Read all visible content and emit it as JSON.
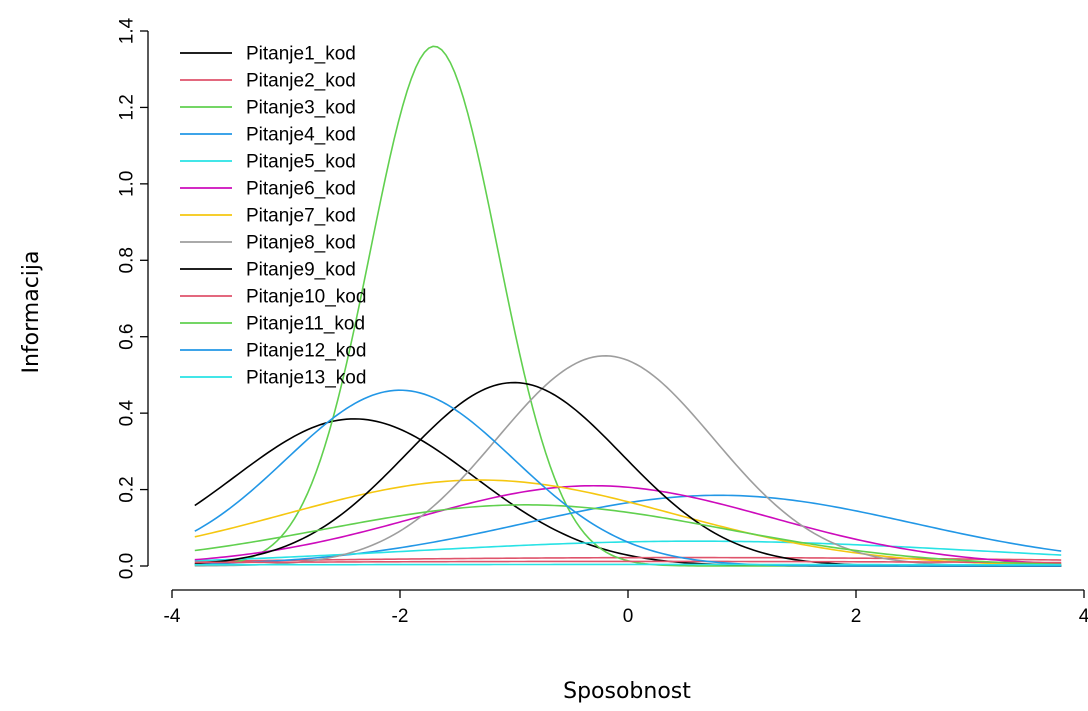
{
  "chart_data": {
    "type": "line",
    "title": "",
    "xlabel": "Sposobnost",
    "ylabel": "Informacija",
    "xlim": [
      -4,
      4
    ],
    "ylim": [
      0,
      1.4
    ],
    "xticks": [
      "-4",
      "-2",
      "0",
      "2",
      "4"
    ],
    "yticks": [
      "0.0",
      "0.2",
      "0.4",
      "0.6",
      "0.8",
      "1.0",
      "1.2",
      "1.4"
    ],
    "x_range": [
      -3.8,
      3.8
    ],
    "legend_position": "top-left",
    "grid": false,
    "series": [
      {
        "name": "Pitanje1_kod",
        "color": "#000000",
        "peak_x": -2.4,
        "peak_y": 0.385,
        "width": 1.05
      },
      {
        "name": "Pitanje2_kod",
        "color": "#DF536B",
        "peak_x": 0.5,
        "peak_y": 0.022,
        "width": 4.0
      },
      {
        "name": "Pitanje3_kod",
        "color": "#61D04F",
        "peak_x": -1.7,
        "peak_y": 1.36,
        "width": 0.56
      },
      {
        "name": "Pitanje4_kod",
        "color": "#2297E6",
        "peak_x": 0.8,
        "peak_y": 0.185,
        "width": 1.7
      },
      {
        "name": "Pitanje5_kod",
        "color": "#28E2E5",
        "peak_x": 0.6,
        "peak_y": 0.065,
        "width": 2.5
      },
      {
        "name": "Pitanje6_kod",
        "color": "#CD0BBC",
        "peak_x": -0.3,
        "peak_y": 0.21,
        "width": 1.55
      },
      {
        "name": "Pitanje7_kod",
        "color": "#F5C710",
        "peak_x": -1.3,
        "peak_y": 0.225,
        "width": 1.7
      },
      {
        "name": "Pitanje8_kod",
        "color": "#9E9E9E",
        "peak_x": -0.2,
        "peak_y": 0.55,
        "width": 0.95
      },
      {
        "name": "Pitanje9_kod",
        "color": "#000000",
        "peak_x": -1.0,
        "peak_y": 0.48,
        "width": 0.95
      },
      {
        "name": "Pitanje10_kod",
        "color": "#DF536B",
        "peak_x": 0.0,
        "peak_y": 0.012,
        "width": 5.0
      },
      {
        "name": "Pitanje11_kod",
        "color": "#61D04F",
        "peak_x": -0.9,
        "peak_y": 0.16,
        "width": 1.75
      },
      {
        "name": "Pitanje12_kod",
        "color": "#2297E6",
        "peak_x": -2.0,
        "peak_y": 0.46,
        "width": 1.0
      },
      {
        "name": "Pitanje13_kod",
        "color": "#28E2E5",
        "peak_x": 0.0,
        "peak_y": 0.004,
        "width": 5.0
      }
    ]
  }
}
